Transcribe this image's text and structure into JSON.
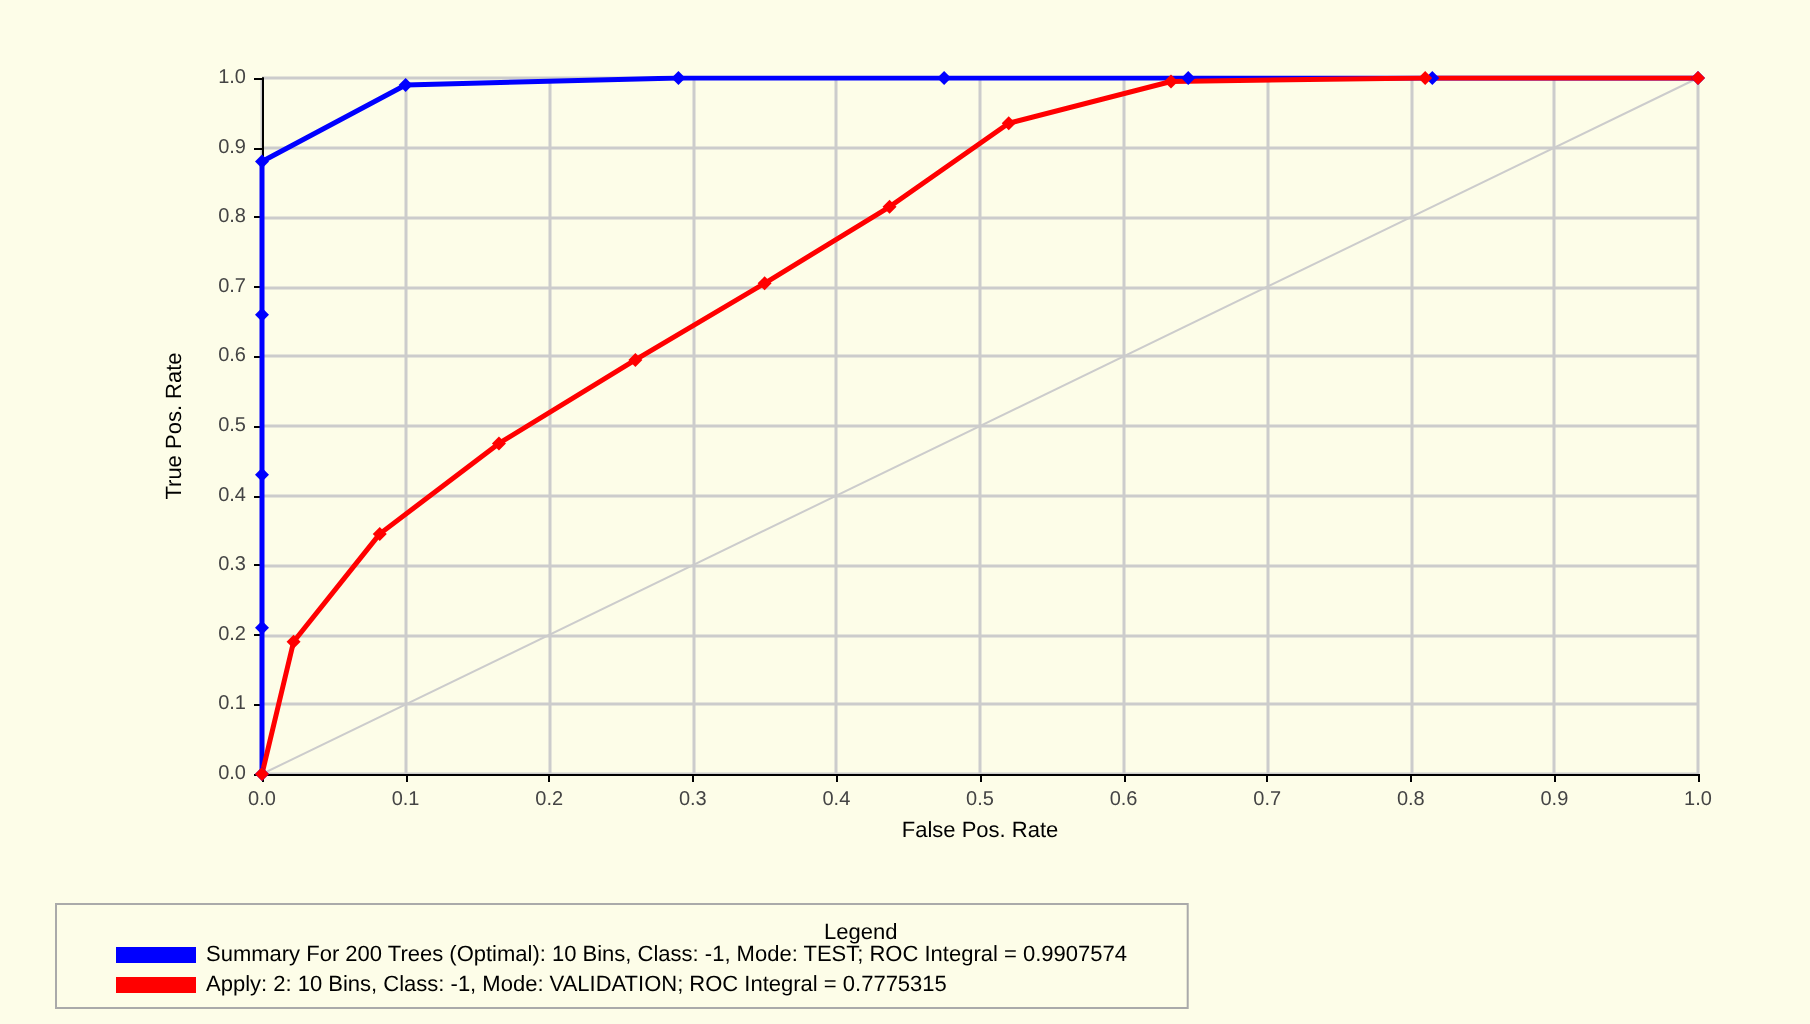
{
  "chart_data": {
    "type": "line",
    "xlabel": "False Pos. Rate",
    "ylabel": "True Pos. Rate",
    "legend_title": "Legend",
    "xlim": [
      0,
      1
    ],
    "ylim": [
      0,
      1
    ],
    "xticks": [
      {
        "value": 0,
        "label": "0.0"
      },
      0.1,
      0.2,
      0.3,
      0.4,
      0.5,
      0.6,
      0.7,
      0.8,
      0.9,
      {
        "value": 1,
        "label": "1.0"
      }
    ],
    "yticks": [
      {
        "value": 0,
        "label": "0.0"
      },
      0.1,
      0.2,
      0.3,
      0.4,
      0.5,
      0.6,
      0.7,
      0.8,
      0.9,
      {
        "value": 1,
        "label": "1.0"
      }
    ],
    "grid": true,
    "legend": "bottom",
    "marker": "diamond",
    "line_style": "solid",
    "series": [
      {
        "name": "Summary For 200 Trees (Optimal): 10 Bins, Class: -1, Mode: TEST; ROC Integral = 0.9907574",
        "color": "#0000ff",
        "x": [
          0,
          0,
          0,
          0,
          0,
          0.1,
          0.29,
          0.475,
          0.645,
          0.815,
          1
        ],
        "values": [
          0,
          0.21,
          0.43,
          0.66,
          0.88,
          0.99,
          1,
          1,
          1,
          1,
          1
        ]
      },
      {
        "name": "Apply: 2: 10 Bins, Class: -1, Mode: VALIDATION; ROC Integral = 0.7775315",
        "color": "#ff0000",
        "x": [
          0,
          0.022,
          0.082,
          0.165,
          0.26,
          0.35,
          0.437,
          0.52,
          0.633,
          0.81,
          1
        ],
        "values": [
          0,
          0.19,
          0.345,
          0.475,
          0.595,
          0.705,
          0.815,
          0.935,
          0.995,
          1,
          1
        ]
      },
      {
        "color": "#cccccc",
        "marker": "none",
        "x": [
          0,
          1
        ],
        "values": [
          0,
          1
        ]
      }
    ]
  }
}
